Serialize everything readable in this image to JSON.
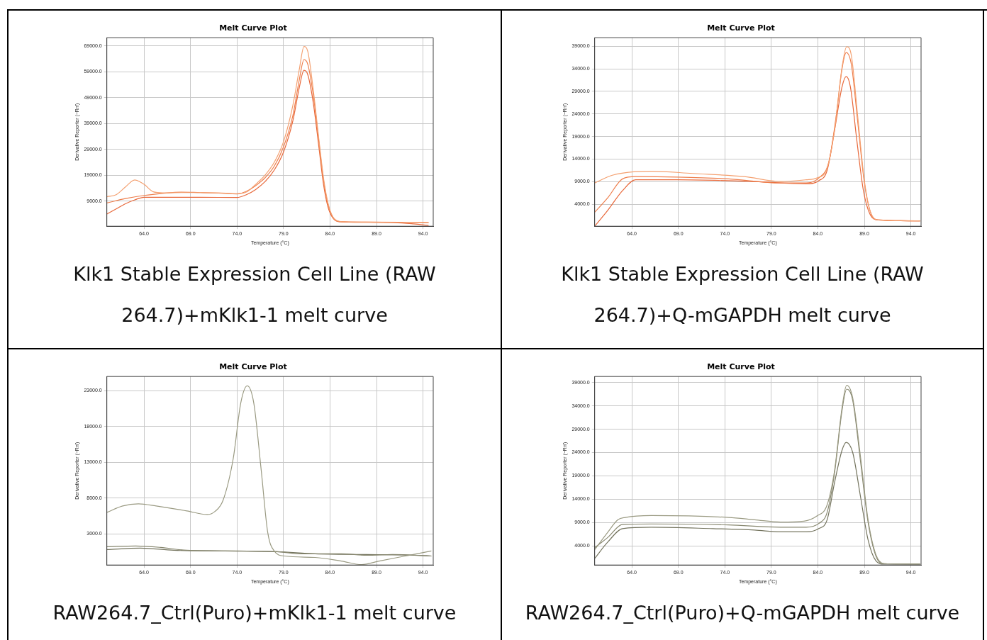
{
  "chart_data": [
    {
      "type": "line",
      "title": "Melt Curve Plot",
      "xlabel": "Temperature (°C)",
      "ylabel": "Derivative Reporter (−Rn′)",
      "annotations": [
        "Klk1 Stable Expression Cell Line (RAW 264.7)+mKlk1-1 melt curve"
      ],
      "xlim": [
        60,
        95.1
      ],
      "ylim": [
        -700,
        72200
      ],
      "xticks": [
        {
          "value": 64,
          "label": "64.0"
        },
        {
          "value": 69,
          "label": "69.0"
        },
        {
          "value": 74,
          "label": "74.0"
        },
        {
          "value": 79,
          "label": "79.0"
        },
        {
          "value": 84,
          "label": "84.0"
        },
        {
          "value": 89,
          "label": "89.0"
        },
        {
          "value": 94,
          "label": "94.0"
        }
      ],
      "yticks": [
        {
          "value": 9000,
          "label": "9000.0"
        },
        {
          "value": 19000,
          "label": "19000.0"
        },
        {
          "value": 29000,
          "label": "29000.0"
        },
        {
          "value": 39000,
          "label": "39000.0"
        },
        {
          "value": 49000,
          "label": "49000.0"
        },
        {
          "value": 59000,
          "label": "59000.0"
        },
        {
          "value": 69000,
          "label": "69000.0"
        }
      ],
      "grid": true,
      "legend": false,
      "marker": "none",
      "line_style": "solid",
      "series": [
        {
          "color": "#f4a070",
          "x": [
            60,
            61,
            62,
            63,
            64,
            65,
            66,
            68,
            70,
            72,
            74,
            75,
            76,
            77,
            78,
            79,
            80,
            80.7,
            81.2,
            81.6,
            82.2,
            82.8,
            83.3,
            83.8,
            84.3,
            85,
            87,
            90,
            92,
            94.6
          ],
          "values": [
            10700,
            11500,
            14500,
            17200,
            15500,
            12600,
            12200,
            12300,
            12300,
            12200,
            11900,
            12500,
            15500,
            19000,
            24000,
            32000,
            46000,
            60000,
            68800,
            67000,
            52000,
            33000,
            18000,
            8000,
            3000,
            1200,
            900,
            800,
            800,
            700
          ]
        },
        {
          "color": "#ee7e4c",
          "x": [
            60,
            62,
            64,
            66,
            68,
            70,
            72,
            74,
            75,
            76,
            77,
            78,
            79,
            80,
            80.7,
            81.2,
            81.6,
            82.2,
            82.8,
            83.3,
            83.8,
            84.3,
            85,
            88,
            92,
            94.6
          ],
          "values": [
            8300,
            10000,
            11200,
            12000,
            12500,
            12300,
            12100,
            11800,
            12800,
            15000,
            18000,
            22500,
            30000,
            42000,
            56000,
            63700,
            62000,
            50000,
            32000,
            17000,
            7500,
            2800,
            1100,
            900,
            800,
            700
          ]
        },
        {
          "color": "#e8683a",
          "x": [
            60,
            61,
            62,
            63,
            64,
            66,
            70,
            74,
            75,
            76,
            77,
            78,
            79,
            80,
            80.7,
            81.2,
            81.6,
            82.2,
            82.8,
            83.3,
            83.8,
            84.3,
            85,
            88,
            91,
            93,
            94.6
          ],
          "values": [
            4000,
            6000,
            8000,
            9500,
            10500,
            10500,
            10500,
            10400,
            11500,
            13500,
            16500,
            21000,
            28000,
            40000,
            53000,
            59600,
            58000,
            47000,
            30000,
            15500,
            6500,
            2500,
            1000,
            800,
            700,
            200,
            -400
          ]
        }
      ]
    },
    {
      "type": "line",
      "title": "Melt Curve Plot",
      "xlabel": "Temperature (°C)",
      "ylabel": "Derivative Reporter (−Rn′)",
      "annotations": [
        "Klk1 Stable Expression Cell Line (RAW 264.7)+Q-mGAPDH melt curve"
      ],
      "xlim": [
        60,
        95.1
      ],
      "ylim": [
        -900,
        40900
      ],
      "xticks": [
        {
          "value": 64,
          "label": "64.0"
        },
        {
          "value": 69,
          "label": "69.0"
        },
        {
          "value": 74,
          "label": "74.0"
        },
        {
          "value": 79,
          "label": "79.0"
        },
        {
          "value": 84,
          "label": "84.0"
        },
        {
          "value": 89,
          "label": "89.0"
        },
        {
          "value": 94,
          "label": "94.0"
        }
      ],
      "yticks": [
        {
          "value": 4000,
          "label": "4000.0"
        },
        {
          "value": 9000,
          "label": "9000.0"
        },
        {
          "value": 14000,
          "label": "14000.0"
        },
        {
          "value": 19000,
          "label": "19000.0"
        },
        {
          "value": 24000,
          "label": "24000.0"
        },
        {
          "value": 29000,
          "label": "29000.0"
        },
        {
          "value": 34000,
          "label": "34000.0"
        },
        {
          "value": 39000,
          "label": "39000.0"
        }
      ],
      "grid": true,
      "legend": false,
      "marker": "none",
      "line_style": "solid",
      "series": [
        {
          "color": "#f4a070",
          "x": [
            60,
            61.9,
            64.4,
            66.1,
            70.5,
            76.1,
            80,
            82.75,
            83.9,
            85,
            85.8,
            86.6,
            87.1,
            87.6,
            88.3,
            89,
            89.7,
            90.5,
            95
          ],
          "values": [
            8700,
            10400,
            11200,
            11300,
            10800,
            10100,
            9000,
            9400,
            9800,
            12000,
            20400,
            34300,
            38900,
            37000,
            23200,
            9300,
            2000,
            500,
            300
          ]
        },
        {
          "color": "#ee7e4c",
          "x": [
            60,
            61.4,
            63,
            64.4,
            68.9,
            74.4,
            80,
            82.75,
            84.1,
            85.2,
            86,
            86.6,
            87.05,
            87.6,
            88.3,
            89,
            89.7,
            90.5,
            95
          ],
          "values": [
            2200,
            5400,
            9600,
            10100,
            10000,
            9600,
            8700,
            8700,
            9800,
            13500,
            24000,
            34000,
            37600,
            35000,
            22000,
            8800,
            2000,
            500,
            300
          ]
        },
        {
          "color": "#e8683a",
          "x": [
            60,
            61.4,
            63,
            64.4,
            68.9,
            77.2,
            82.75,
            84.1,
            85,
            85.8,
            86.6,
            87.05,
            87.5,
            88.2,
            88.9,
            89.6,
            90.5,
            95
          ],
          "values": [
            -900,
            2600,
            7000,
            9400,
            9400,
            9000,
            8500,
            9200,
            11500,
            20400,
            30000,
            32300,
            30000,
            18000,
            7000,
            1800,
            500,
            300
          ]
        }
      ]
    },
    {
      "type": "line",
      "title": "Melt Curve Plot",
      "xlabel": "Temperature (°C)",
      "ylabel": "Derivative Reporter (−Rn′)",
      "annotations": [
        "RAW264.7_Ctrl(Puro)+mKlk1-1 melt curve"
      ],
      "xlim": [
        60,
        95.1
      ],
      "ylim": [
        -1360,
        25000
      ],
      "xticks": [
        {
          "value": 64,
          "label": "64.0"
        },
        {
          "value": 69,
          "label": "69.0"
        },
        {
          "value": 74,
          "label": "74.0"
        },
        {
          "value": 79,
          "label": "79.0"
        },
        {
          "value": 84,
          "label": "84.0"
        },
        {
          "value": 89,
          "label": "89.0"
        },
        {
          "value": 94,
          "label": "94.0"
        }
      ],
      "yticks": [
        {
          "value": 3000,
          "label": "3000.0"
        },
        {
          "value": 8000,
          "label": "8000.0"
        },
        {
          "value": 13000,
          "label": "13000.0"
        },
        {
          "value": 18000,
          "label": "18000.0"
        },
        {
          "value": 23000,
          "label": "23000.0"
        }
      ],
      "grid": true,
      "legend": false,
      "marker": "none",
      "line_style": "solid",
      "series": [
        {
          "color": "#9a9a82",
          "x": [
            60,
            61.7,
            63.4,
            65.3,
            68.6,
            70.8,
            71.6,
            72.5,
            73.6,
            74.4,
            75.1,
            75.8,
            76.6,
            77.3,
            78,
            79.1,
            82.4,
            85.2,
            87.4,
            89.3,
            92.1,
            94.9
          ],
          "values": [
            6000,
            6900,
            7200,
            6900,
            6200,
            5700,
            6100,
            7700,
            13600,
            21300,
            23700,
            21300,
            11900,
            3200,
            600,
            -100,
            -300,
            -800,
            -1300,
            -800,
            -100,
            600
          ]
        },
        {
          "color": "#86866e",
          "x": [
            60,
            63.1,
            65.8,
            68.6,
            74.1,
            78.3,
            81,
            85.2,
            88,
            90.7,
            94.9
          ],
          "values": [
            1200,
            1300,
            1100,
            700,
            600,
            500,
            200,
            200,
            0,
            100,
            -100
          ]
        },
        {
          "color": "#74745e",
          "x": [
            60,
            63.6,
            67.2,
            72.7,
            78.3,
            82.4,
            87.9,
            93.3,
            94.9
          ],
          "values": [
            800,
            1000,
            700,
            600,
            500,
            200,
            100,
            0,
            -100
          ]
        }
      ]
    },
    {
      "type": "line",
      "title": "Melt Curve Plot",
      "xlabel": "Temperature (°C)",
      "ylabel": "Derivative Reporter (−Rn′)",
      "annotations": [
        "RAW264.7_Ctrl(Puro)+Q-mGAPDH melt curve"
      ],
      "xlim": [
        60,
        95.1
      ],
      "ylim": [
        -100,
        40300
      ],
      "xticks": [
        {
          "value": 64,
          "label": "64.0"
        },
        {
          "value": 69,
          "label": "69.0"
        },
        {
          "value": 74,
          "label": "74.0"
        },
        {
          "value": 79,
          "label": "79.0"
        },
        {
          "value": 84,
          "label": "84.0"
        },
        {
          "value": 89,
          "label": "89.0"
        },
        {
          "value": 94,
          "label": "94.0"
        }
      ],
      "yticks": [
        {
          "value": 4000,
          "label": "4000.0"
        },
        {
          "value": 9000,
          "label": "9000.0"
        },
        {
          "value": 14000,
          "label": "14000.0"
        },
        {
          "value": 19000,
          "label": "19000.0"
        },
        {
          "value": 24000,
          "label": "24000.0"
        },
        {
          "value": 29000,
          "label": "29000.0"
        },
        {
          "value": 34000,
          "label": "34000.0"
        },
        {
          "value": 39000,
          "label": "39000.0"
        }
      ],
      "grid": true,
      "legend": false,
      "marker": "none",
      "line_style": "solid",
      "series": [
        {
          "color": "#9a9a82",
          "x": [
            60,
            61.4,
            62.5,
            63.3,
            66.1,
            74.4,
            77.2,
            80,
            82.5,
            83.9,
            85,
            85.8,
            86.6,
            87.1,
            87.75,
            88.6,
            89.4,
            90.25,
            91.1,
            95
          ],
          "values": [
            3200,
            6900,
            9600,
            10100,
            10500,
            10100,
            9600,
            9100,
            9300,
            10400,
            12800,
            20200,
            33600,
            38400,
            35700,
            22900,
            9600,
            2100,
            200,
            100
          ]
        },
        {
          "color": "#86866e",
          "x": [
            60,
            61.4,
            63,
            66.1,
            74.4,
            80,
            82.75,
            84.1,
            85,
            85.8,
            86.6,
            87.1,
            87.75,
            88.6,
            89.4,
            90.25,
            91.1,
            95
          ],
          "values": [
            3600,
            5800,
            8600,
            8700,
            8500,
            8000,
            8000,
            8800,
            11200,
            19700,
            33000,
            37600,
            35200,
            21900,
            9100,
            1800,
            200,
            100
          ]
        },
        {
          "color": "#74745e",
          "x": [
            60,
            61.4,
            63,
            66.1,
            72.7,
            77.2,
            80,
            82.75,
            84.1,
            85,
            85.8,
            86.6,
            87.05,
            87.75,
            88.6,
            89.4,
            90.25,
            91.1,
            95
          ],
          "values": [
            1300,
            4800,
            7700,
            8000,
            7700,
            7400,
            7000,
            7000,
            7700,
            9600,
            17600,
            24500,
            26200,
            24000,
            14400,
            5300,
            800,
            100,
            100
          ]
        }
      ]
    }
  ]
}
